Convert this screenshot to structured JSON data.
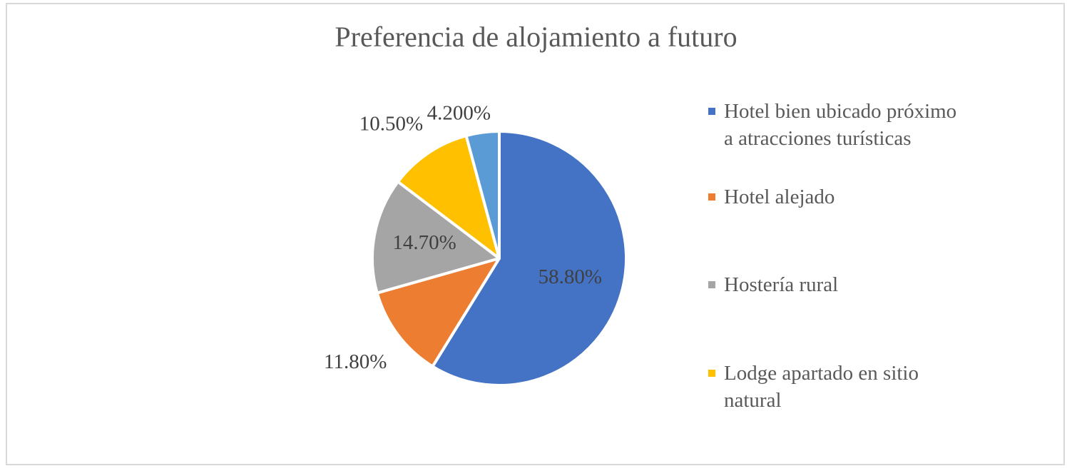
{
  "chart_data": {
    "type": "pie",
    "title": "Preferencia de alojamiento a futuro",
    "categories": [
      "Hotel bien ubicado próximo a atracciones turísticas",
      "Hotel alejado",
      "Hostería rural",
      "Lodge apartado en sitio natural",
      ""
    ],
    "values": [
      58.8,
      11.8,
      14.7,
      10.5,
      4.2
    ],
    "data_labels": [
      "58.80%",
      "11.80%",
      "14.70%",
      "10.50%",
      "4.200%"
    ],
    "colors": [
      "#4472C4",
      "#ED7D31",
      "#A5A5A5",
      "#FFC000",
      "#5B9BD5"
    ],
    "legend": {
      "position": "right",
      "entries": [
        {
          "label": "Hotel bien ubicado próximo a atracciones turísticas",
          "color": "#4472C4"
        },
        {
          "label": "Hotel alejado",
          "color": "#ED7D31"
        },
        {
          "label": "Hostería rural",
          "color": "#A5A5A5"
        },
        {
          "label": "Lodge apartado en sitio natural",
          "color": "#FFC000"
        }
      ]
    }
  }
}
